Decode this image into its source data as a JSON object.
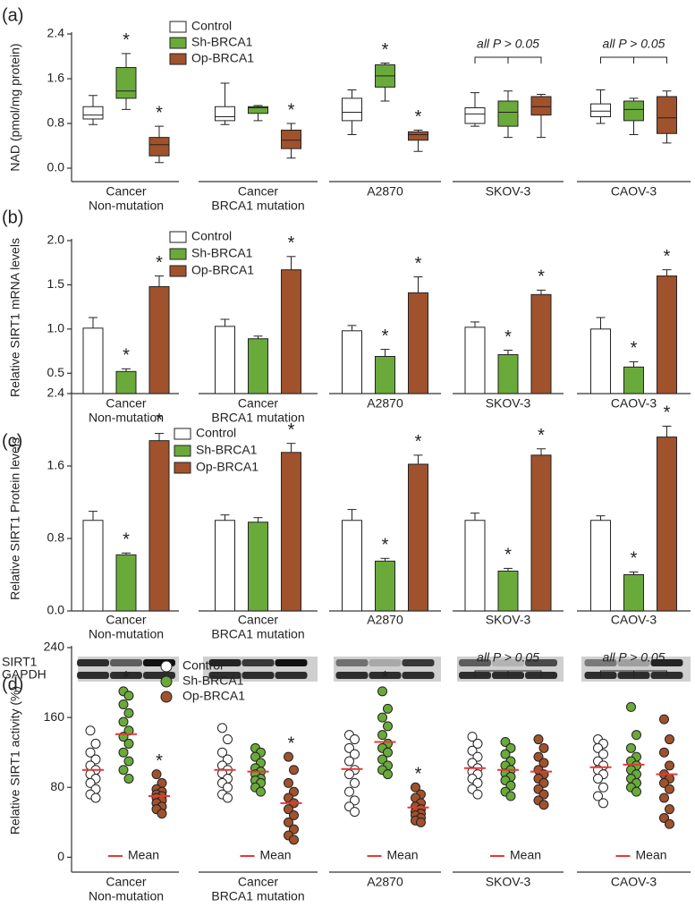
{
  "chart_data": [
    {
      "type": "box",
      "label": "(a)",
      "y_label": "NAD (pmol/mg protein)",
      "categories": [
        [
          "Cancer",
          "Non-mutation"
        ],
        [
          "Cancer",
          "BRCA1 mutation"
        ],
        [
          "A2870"
        ],
        [
          "SKOV-3"
        ],
        [
          "CAOV-3"
        ]
      ],
      "ylim": [
        -0.24,
        2.4
      ],
      "yticks": [
        {
          "value": 0,
          "label": "0.0"
        },
        0.8,
        1.6,
        2.4
      ],
      "notes": [
        null,
        null,
        null,
        "all P > 0.05",
        "all P > 0.05"
      ],
      "series": [
        {
          "name": "Control",
          "color": "#ffffff",
          "values": [
            [
              0.78,
              0.88,
              0.95,
              1.1,
              1.3
            ],
            [
              0.78,
              0.85,
              0.92,
              1.1,
              1.52
            ],
            [
              0.6,
              0.85,
              1.0,
              1.25,
              1.4
            ],
            [
              0.75,
              0.8,
              0.97,
              1.08,
              1.35
            ],
            [
              0.8,
              0.92,
              1.02,
              1.15,
              1.4
            ]
          ],
          "sig": [
            null,
            null,
            null,
            null,
            null
          ]
        },
        {
          "name": "Sh-BRCA1",
          "color": "#6aaa3a",
          "values": [
            [
              1.05,
              1.25,
              1.38,
              1.8,
              2.05
            ],
            [
              0.85,
              0.98,
              1.08,
              1.1,
              1.12
            ],
            [
              1.2,
              1.45,
              1.65,
              1.85,
              1.88
            ],
            [
              0.55,
              0.75,
              1.0,
              1.2,
              1.38
            ],
            [
              0.6,
              0.85,
              1.05,
              1.2,
              1.25
            ]
          ],
          "sig": [
            "*",
            null,
            "*",
            null,
            null
          ]
        },
        {
          "name": "Op-BRCA1",
          "color": "#a0522d",
          "values": [
            [
              0.1,
              0.22,
              0.42,
              0.55,
              0.75
            ],
            [
              0.18,
              0.35,
              0.5,
              0.68,
              0.8
            ],
            [
              0.3,
              0.5,
              0.6,
              0.65,
              0.68
            ],
            [
              0.55,
              0.95,
              1.1,
              1.28,
              1.32
            ],
            [
              0.45,
              0.62,
              0.9,
              1.28,
              1.38
            ]
          ],
          "sig": [
            "*",
            "*",
            "*",
            null,
            null
          ]
        }
      ]
    },
    {
      "type": "bar",
      "label": "(b)",
      "y_label": "Relative SIRT1 mRNA levels",
      "categories": [
        [
          "Cancer",
          "Non-mutation"
        ],
        [
          "Cancer",
          "BRCA1 mutation"
        ],
        [
          "A2870"
        ],
        [
          "SKOV-3"
        ],
        [
          "CAOV-3"
        ]
      ],
      "ylim": [
        0.27,
        2.0
      ],
      "yticks": [
        0.5,
        {
          "value": 1,
          "label": "1.0"
        },
        1.5,
        {
          "value": 2,
          "label": "2.0"
        }
      ],
      "series": [
        {
          "name": "Control",
          "color": "#ffffff",
          "values": [
            1.01,
            1.03,
            0.98,
            1.02,
            1.0
          ],
          "errors": [
            0.12,
            0.08,
            0.06,
            0.06,
            0.13
          ],
          "sig": [
            null,
            null,
            null,
            null,
            null
          ]
        },
        {
          "name": "Sh-BRCA1",
          "color": "#6aaa3a",
          "values": [
            0.52,
            0.89,
            0.69,
            0.71,
            0.57
          ],
          "errors": [
            0.03,
            0.03,
            0.08,
            0.05,
            0.06
          ],
          "sig": [
            "*",
            null,
            "*",
            "*",
            "*"
          ]
        },
        {
          "name": "Op-BRCA1",
          "color": "#a0522d",
          "values": [
            1.48,
            1.67,
            1.41,
            1.39,
            1.6
          ],
          "errors": [
            0.12,
            0.15,
            0.18,
            0.05,
            0.07
          ],
          "sig": [
            "*",
            "*",
            "*",
            "*",
            "*"
          ]
        }
      ]
    },
    {
      "type": "bar",
      "label": "(c)",
      "y_label": "Relative SIRT1 Protein levels",
      "categories": [
        [
          "Cancer",
          "Non-mutation"
        ],
        [
          "Cancer",
          "BRCA1 mutation"
        ],
        [
          "A2870"
        ],
        [
          "SKOV-3"
        ],
        [
          "CAOV-3"
        ]
      ],
      "ylim": [
        0,
        2.4
      ],
      "yticks": [
        {
          "value": 0,
          "label": "0.0"
        },
        0.8,
        1.6,
        2.4
      ],
      "blot_labels": [
        "SIRT1",
        "GAPDH"
      ],
      "series": [
        {
          "name": "Control",
          "color": "#ffffff",
          "values": [
            1.0,
            1.0,
            1.0,
            1.0,
            1.0
          ],
          "errors": [
            0.1,
            0.06,
            0.12,
            0.08,
            0.05
          ],
          "sig": [
            null,
            null,
            null,
            null,
            null
          ]
        },
        {
          "name": "Sh-BRCA1",
          "color": "#6aaa3a",
          "values": [
            0.62,
            0.98,
            0.55,
            0.44,
            0.4
          ],
          "errors": [
            0.02,
            0.05,
            0.03,
            0.03,
            0.03
          ],
          "sig": [
            "*",
            null,
            "*",
            "*",
            "*"
          ]
        },
        {
          "name": "Op-BRCA1",
          "color": "#a0522d",
          "values": [
            1.88,
            1.75,
            1.62,
            1.72,
            1.92
          ],
          "errors": [
            0.08,
            0.1,
            0.1,
            0.07,
            0.12
          ],
          "sig": [
            "*",
            "*",
            "*",
            "*",
            "*"
          ]
        }
      ]
    },
    {
      "type": "dot",
      "label": "(d)",
      "y_label": "Relative SIRT1 activity (%)",
      "categories": [
        [
          "Cancer",
          "Non-mutation"
        ],
        [
          "Cancer",
          "BRCA1 mutation"
        ],
        [
          "A2870"
        ],
        [
          "SKOV-3"
        ],
        [
          "CAOV-3"
        ]
      ],
      "ylim": [
        -17,
        240
      ],
      "yticks": [
        0,
        80,
        160,
        240
      ],
      "notes": [
        null,
        null,
        null,
        "all P > 0.05",
        "all P > 0.05"
      ],
      "mean_label": "Mean",
      "mean_color": "#e53935",
      "series": [
        {
          "name": "Control",
          "color": "#ffffff",
          "means": [
            100,
            100,
            101,
            102,
            103
          ],
          "sig": [
            null,
            null,
            null,
            null,
            null
          ],
          "values": [
            [
              145,
              130,
              120,
              112,
              105,
              100,
              95,
              90,
              85,
              78,
              72,
              68
            ],
            [
              148,
              135,
              120,
              112,
              105,
              100,
              96,
              90,
              85,
              80,
              72,
              68
            ],
            [
              140,
              135,
              125,
              118,
              110,
              100,
              95,
              85,
              75,
              65,
              58,
              52
            ],
            [
              138,
              130,
              122,
              115,
              108,
              102,
              98,
              95,
              90,
              85,
              78,
              72
            ],
            [
              135,
              130,
              125,
              118,
              110,
              105,
              100,
              95,
              90,
              80,
              70,
              62
            ]
          ]
        },
        {
          "name": "Sh-BRCA1",
          "color": "#6aaa3a",
          "means": [
            141,
            98,
            132,
            100,
            106
          ],
          "sig": [
            "*",
            null,
            "*",
            null,
            null
          ],
          "values": [
            [
              190,
              185,
              175,
              165,
              155,
              145,
              138,
              130,
              120,
              110,
              100,
              90
            ],
            [
              125,
              120,
              115,
              108,
              102,
              98,
              95,
              90,
              88,
              85,
              80,
              75
            ],
            [
              190,
              170,
              160,
              150,
              140,
              130,
              125,
              120,
              112,
              105,
              100,
              95
            ],
            [
              132,
              125,
              118,
              110,
              105,
              100,
              96,
              92,
              88,
              82,
              75,
              70
            ],
            [
              172,
              140,
              125,
              115,
              110,
              105,
              100,
              95,
              90,
              85,
              80,
              75
            ]
          ]
        },
        {
          "name": "Op-BRCA1",
          "color": "#a0522d",
          "means": [
            70,
            62,
            57,
            98,
            95
          ],
          "sig": [
            "*",
            "*",
            "*",
            null,
            null
          ],
          "values": [
            [
              95,
              85,
              78,
              75,
              72,
              70,
              68,
              65,
              62,
              58,
              55,
              50
            ],
            [
              115,
              100,
              85,
              75,
              68,
              62,
              55,
              48,
              40,
              32,
              25,
              20
            ],
            [
              80,
              72,
              68,
              62,
              58,
              55,
              52,
              50,
              48,
              45,
              42,
              40
            ],
            [
              135,
              125,
              115,
              108,
              100,
              95,
              90,
              85,
              78,
              72,
              65,
              60
            ],
            [
              158,
              135,
              120,
              105,
              95,
              90,
              85,
              78,
              68,
              55,
              45,
              38
            ]
          ]
        }
      ]
    }
  ]
}
